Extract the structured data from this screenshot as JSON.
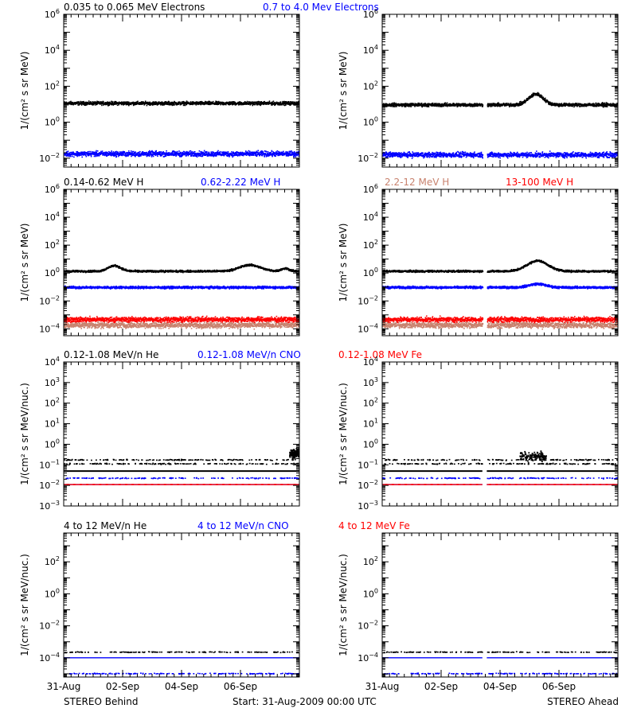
{
  "chart_data": [
    {
      "type": "scatter",
      "id": "electrons-behind",
      "spacecraft": "STEREO Behind",
      "title_parts": [
        {
          "text": "0.035 to 0.065 MeV Electrons",
          "color": "#000000"
        },
        {
          "text": "0.7 to 4.0 Mev Electrons",
          "color": "#0000ff"
        }
      ],
      "ylabel": "1/(cm² s sr MeV)",
      "yscale": "log",
      "ylim": [
        0.0032,
        1000000
      ],
      "yticks": [
        0.01,
        1,
        100,
        10000,
        1000000
      ],
      "ytick_labels": [
        "10⁻²",
        "10⁰",
        "10²",
        "10⁴",
        "10⁶"
      ],
      "xlim_days": [
        0,
        8
      ],
      "gaps": [],
      "series": [
        {
          "color": "#000000",
          "level": 11,
          "spread": 0.08,
          "bumps": []
        },
        {
          "color": "#0000ff",
          "level": 0.017,
          "spread": 0.12,
          "bumps": []
        }
      ]
    },
    {
      "type": "scatter",
      "id": "electrons-ahead",
      "spacecraft": "STEREO Ahead",
      "title_parts": [],
      "ylabel": "1/(cm² s sr MeV)",
      "yscale": "log",
      "ylim": [
        0.0032,
        1000000
      ],
      "yticks": [
        0.01,
        1,
        100,
        10000,
        1000000
      ],
      "ytick_labels": [
        "10⁻²",
        "10⁰",
        "10²",
        "10⁴",
        "10⁶"
      ],
      "xlim_days": [
        0,
        8
      ],
      "gaps": [
        [
          3.4,
          3.55
        ]
      ],
      "series": [
        {
          "color": "#000000",
          "level": 9,
          "spread": 0.08,
          "bumps": [
            [
              5.2,
              0.35,
              0.6
            ]
          ]
        },
        {
          "color": "#0000ff",
          "level": 0.015,
          "spread": 0.12,
          "bumps": []
        }
      ]
    },
    {
      "type": "scatter",
      "id": "protons-behind",
      "spacecraft": "STEREO Behind",
      "title_parts": [
        {
          "text": "0.14-0.62 MeV H",
          "color": "#000000"
        },
        {
          "text": "0.62-2.22 MeV H",
          "color": "#0000ff"
        },
        {
          "text": "2.2-12 MeV H",
          "color": "#c8826e"
        },
        {
          "text": "13-100 MeV H",
          "color": "#ff0000"
        }
      ],
      "ylabel": "1/(cm² s sr MeV)",
      "yscale": "log",
      "ylim": [
        3.2e-05,
        1000000
      ],
      "yticks": [
        0.0001,
        0.01,
        1,
        100,
        10000,
        1000000
      ],
      "ytick_labels": [
        "10⁻⁴",
        "10⁻²",
        "10⁰",
        "10²",
        "10⁴",
        "10⁶"
      ],
      "xlim_days": [
        0,
        8
      ],
      "gaps": [],
      "series": [
        {
          "color": "#000000",
          "level": 1.3,
          "spread": 0.06,
          "bumps": [
            [
              1.7,
              0.3,
              0.4
            ],
            [
              6.3,
              0.5,
              0.45
            ],
            [
              7.5,
              0.2,
              0.2
            ]
          ]
        },
        {
          "color": "#0000ff",
          "level": 0.09,
          "spread": 0.07,
          "bumps": []
        },
        {
          "color": "#c8826e",
          "level": 0.00018,
          "spread": 0.18,
          "bumps": []
        },
        {
          "color": "#ff0000",
          "level": 0.00045,
          "spread": 0.15,
          "bumps": []
        }
      ]
    },
    {
      "type": "scatter",
      "id": "protons-ahead",
      "spacecraft": "STEREO Ahead",
      "title_parts": [],
      "ylabel": "1/(cm² s sr MeV)",
      "yscale": "log",
      "ylim": [
        3.2e-05,
        1000000
      ],
      "yticks": [
        0.0001,
        0.01,
        1,
        100,
        10000,
        1000000
      ],
      "ytick_labels": [
        "10⁻⁴",
        "10⁻²",
        "10⁰",
        "10²",
        "10⁴",
        "10⁶"
      ],
      "xlim_days": [
        0,
        8
      ],
      "gaps": [
        [
          3.4,
          3.55
        ]
      ],
      "series": [
        {
          "color": "#000000",
          "level": 1.3,
          "spread": 0.06,
          "bumps": [
            [
              5.25,
              0.5,
              0.75
            ]
          ]
        },
        {
          "color": "#0000ff",
          "level": 0.09,
          "spread": 0.07,
          "bumps": [
            [
              5.25,
              0.4,
              0.25
            ]
          ]
        },
        {
          "color": "#c8826e",
          "level": 0.00018,
          "spread": 0.18,
          "bumps": []
        },
        {
          "color": "#ff0000",
          "level": 0.00045,
          "spread": 0.15,
          "bumps": []
        }
      ]
    },
    {
      "type": "scatter",
      "id": "heavy-low-behind",
      "spacecraft": "STEREO Behind",
      "title_parts": [
        {
          "text": "0.12-1.08 MeV/n He",
          "color": "#000000"
        },
        {
          "text": "0.12-1.08 MeV/n CNO",
          "color": "#0000ff"
        },
        {
          "text": "0.12-1.08 MeV Fe",
          "color": "#ff0000"
        }
      ],
      "ylabel": "1/(cm² s sr MeV/nuc.)",
      "yscale": "log",
      "ylim": [
        0.001,
        10000
      ],
      "yticks": [
        0.001,
        0.01,
        0.1,
        1,
        10,
        100,
        1000,
        10000
      ],
      "ytick_labels": [
        "10⁻³",
        "10⁻²",
        "10⁻¹",
        "10⁰",
        "10¹",
        "10²",
        "10³",
        "10⁴"
      ],
      "xlim_days": [
        0,
        8
      ],
      "gaps": [],
      "floor_lines": [
        {
          "color": "#000000",
          "level": 0.05
        },
        {
          "color": "#0000ff",
          "level": 0.011
        },
        {
          "color": "#ff0000",
          "level": 0.011
        }
      ],
      "sparse_levels": [
        {
          "color": "#000000",
          "level": 0.11
        },
        {
          "color": "#000000",
          "level": 0.17
        },
        {
          "color": "#0000ff",
          "level": 0.022
        }
      ],
      "bursts": [
        {
          "color": "#000000",
          "day": 7.8,
          "width": 0.3,
          "level": 0.35
        }
      ]
    },
    {
      "type": "scatter",
      "id": "heavy-low-ahead",
      "spacecraft": "STEREO Ahead",
      "title_parts": [],
      "ylabel": "1/(cm² s sr MeV/nuc.)",
      "yscale": "log",
      "ylim": [
        0.001,
        10000
      ],
      "yticks": [
        0.001,
        0.01,
        0.1,
        1,
        10,
        100,
        1000,
        10000
      ],
      "ytick_labels": [
        "10⁻³",
        "10⁻²",
        "10⁻¹",
        "10⁰",
        "10¹",
        "10²",
        "10³",
        "10⁴"
      ],
      "xlim_days": [
        0,
        8
      ],
      "gaps": [
        [
          3.4,
          3.55
        ]
      ],
      "floor_lines": [
        {
          "color": "#000000",
          "level": 0.05
        },
        {
          "color": "#0000ff",
          "level": 0.011
        },
        {
          "color": "#ff0000",
          "level": 0.011
        }
      ],
      "sparse_levels": [
        {
          "color": "#000000",
          "level": 0.11
        },
        {
          "color": "#000000",
          "level": 0.17
        },
        {
          "color": "#0000ff",
          "level": 0.022
        }
      ],
      "bursts": [
        {
          "color": "#000000",
          "day": 5.1,
          "width": 0.9,
          "level": 0.25
        }
      ]
    },
    {
      "type": "scatter",
      "id": "heavy-high-behind",
      "spacecraft": "STEREO Behind",
      "title_parts": [
        {
          "text": "4 to 12 MeV/n He",
          "color": "#000000"
        },
        {
          "text": "4 to 12 MeV/n CNO",
          "color": "#0000ff"
        },
        {
          "text": "4 to 12 MeV Fe",
          "color": "#ff0000"
        }
      ],
      "ylabel": "1/(cm² s sr MeV/nuc.)",
      "yscale": "log",
      "ylim": [
        6.3e-06,
        6300
      ],
      "yticks": [
        0.0001,
        0.01,
        1,
        100
      ],
      "ytick_labels": [
        "10⁻⁴",
        "10⁻²",
        "10⁰",
        "10²"
      ],
      "xlim_days": [
        0,
        8
      ],
      "gaps": [],
      "floor_lines": [
        {
          "color": "#0000ff",
          "level": 0.0001
        }
      ],
      "sparse_levels": [
        {
          "color": "#000000",
          "level": 0.00022
        },
        {
          "color": "#0000ff",
          "level": 1e-05
        }
      ],
      "bursts": []
    },
    {
      "type": "scatter",
      "id": "heavy-high-ahead",
      "spacecraft": "STEREO Ahead",
      "title_parts": [],
      "ylabel": "1/(cm² s sr MeV/nuc.)",
      "yscale": "log",
      "ylim": [
        6.3e-06,
        6300
      ],
      "yticks": [
        0.0001,
        0.01,
        1,
        100
      ],
      "ytick_labels": [
        "10⁻⁴",
        "10⁻²",
        "10⁰",
        "10²"
      ],
      "xlim_days": [
        0,
        8
      ],
      "gaps": [
        [
          3.4,
          3.55
        ]
      ],
      "floor_lines": [
        {
          "color": "#0000ff",
          "level": 0.0001
        }
      ],
      "sparse_levels": [
        {
          "color": "#000000",
          "level": 0.00022
        },
        {
          "color": "#0000ff",
          "level": 1e-05
        }
      ],
      "bursts": []
    }
  ],
  "x_axis": {
    "tick_days": [
      0,
      2,
      4,
      6
    ],
    "tick_labels": [
      "31-Aug",
      "02-Sep",
      "04-Sep",
      "06-Sep"
    ]
  },
  "footer": {
    "left": "STEREO Behind",
    "center": "Start: 31-Aug-2009 00:00 UTC",
    "right": "STEREO Ahead"
  }
}
